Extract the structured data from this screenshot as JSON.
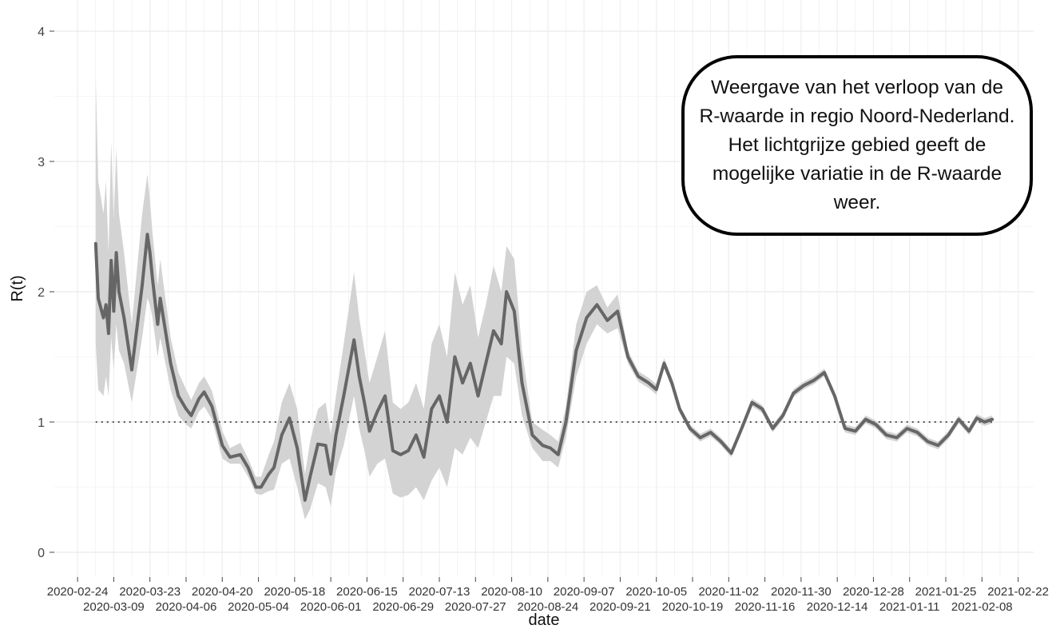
{
  "chart_data": {
    "type": "line",
    "title": "",
    "xlabel": "date",
    "ylabel": "R(t)",
    "ylim": [
      0,
      4
    ],
    "xlim": [
      "2020-02-15",
      "2021-02-28"
    ],
    "yticks": [
      0,
      1,
      2,
      3,
      4
    ],
    "ytick_labels": [
      "0",
      "1",
      "2",
      "3",
      "4"
    ],
    "xticks_row1": [
      "2020-02-24",
      "2020-03-23",
      "2020-04-20",
      "2020-05-18",
      "2020-06-15",
      "2020-07-13",
      "2020-08-10",
      "2020-09-07",
      "2020-10-05",
      "2020-11-02",
      "2020-11-30",
      "2020-12-28",
      "2021-01-25",
      "2021-02-22"
    ],
    "xticks_row1_labels": [
      "2020-02-24",
      "2020-03-23",
      "2020-04-20",
      "2020-05-18",
      "2020-06-15",
      "2020-07-13",
      "2020-08-10",
      "2020-09-07",
      "2020-10-05",
      "2020-11-02",
      "2020-11-30",
      "2020-12-28",
      "2021-01-25",
      "2021-02-22"
    ],
    "xticks_row2": [
      "2020-03-09",
      "2020-04-06",
      "2020-05-04",
      "2020-06-01",
      "2020-06-29",
      "2020-07-27",
      "2020-08-24",
      "2020-09-21",
      "2020-10-19",
      "2020-11-16",
      "2020-12-14",
      "2021-01-11",
      "2021-02-08"
    ],
    "xticks_row2_labels": [
      "2020-03-09",
      "2020-04-06",
      "2020-05-04",
      "2020-06-01",
      "2020-06-29",
      "2020-07-27",
      "2020-08-24",
      "2020-09-21",
      "2020-10-19",
      "2020-11-16",
      "2020-12-14",
      "2021-01-11",
      "2021-02-08"
    ],
    "grid": true,
    "reference_line": {
      "y": 1,
      "style": "dotted"
    },
    "colors": {
      "line": "#666666",
      "band": "#d3d3d3",
      "grid": "#ebebeb",
      "reference": "#555555"
    },
    "series": [
      {
        "x": [
          "2020-03-02",
          "2020-03-03",
          "2020-03-05",
          "2020-03-06",
          "2020-03-07",
          "2020-03-08",
          "2020-03-09",
          "2020-03-10",
          "2020-03-11",
          "2020-03-13",
          "2020-03-16",
          "2020-03-20",
          "2020-03-22",
          "2020-03-23",
          "2020-03-24",
          "2020-03-26",
          "2020-03-27",
          "2020-03-29",
          "2020-03-31",
          "2020-04-03",
          "2020-04-06",
          "2020-04-08",
          "2020-04-11",
          "2020-04-13",
          "2020-04-16",
          "2020-04-20",
          "2020-04-23",
          "2020-04-27",
          "2020-04-30",
          "2020-05-03",
          "2020-05-05",
          "2020-05-08",
          "2020-05-10",
          "2020-05-13",
          "2020-05-16",
          "2020-05-19",
          "2020-05-22",
          "2020-05-24",
          "2020-05-27",
          "2020-05-30",
          "2020-06-01",
          "2020-06-03",
          "2020-06-06",
          "2020-06-10",
          "2020-06-12",
          "2020-06-14",
          "2020-06-16",
          "2020-06-19",
          "2020-06-22",
          "2020-06-25",
          "2020-06-28",
          "2020-07-01",
          "2020-07-04",
          "2020-07-07",
          "2020-07-10",
          "2020-07-13",
          "2020-07-16",
          "2020-07-19",
          "2020-07-22",
          "2020-07-25",
          "2020-07-28",
          "2020-07-31",
          "2020-08-03",
          "2020-08-06",
          "2020-08-08",
          "2020-08-11",
          "2020-08-14",
          "2020-08-18",
          "2020-08-22",
          "2020-08-25",
          "2020-08-28",
          "2020-08-31",
          "2020-09-04",
          "2020-09-08",
          "2020-09-12",
          "2020-09-16",
          "2020-09-20",
          "2020-09-24",
          "2020-09-28",
          "2020-10-02",
          "2020-10-05",
          "2020-10-08",
          "2020-10-11",
          "2020-10-14",
          "2020-10-18",
          "2020-10-22",
          "2020-10-26",
          "2020-10-30",
          "2020-11-03",
          "2020-11-07",
          "2020-11-11",
          "2020-11-15",
          "2020-11-19",
          "2020-11-23",
          "2020-11-27",
          "2020-12-01",
          "2020-12-05",
          "2020-12-09",
          "2020-12-13",
          "2020-12-17",
          "2020-12-21",
          "2020-12-25",
          "2020-12-29",
          "2021-01-02",
          "2021-01-06",
          "2021-01-10",
          "2021-01-14",
          "2021-01-18",
          "2021-01-22",
          "2021-01-26",
          "2021-01-30",
          "2021-02-03",
          "2021-02-06",
          "2021-02-09",
          "2021-02-12"
        ],
        "values": [
          2.37,
          1.95,
          1.8,
          1.9,
          1.68,
          2.24,
          1.85,
          2.3,
          2.0,
          1.8,
          1.4,
          2.05,
          2.44,
          2.3,
          2.1,
          1.75,
          1.95,
          1.7,
          1.45,
          1.2,
          1.1,
          1.05,
          1.18,
          1.23,
          1.12,
          0.82,
          0.73,
          0.75,
          0.65,
          0.5,
          0.5,
          0.6,
          0.65,
          0.9,
          1.03,
          0.8,
          0.4,
          0.58,
          0.83,
          0.82,
          0.6,
          0.9,
          1.2,
          1.63,
          1.35,
          1.15,
          0.93,
          1.08,
          1.2,
          0.78,
          0.75,
          0.78,
          0.9,
          0.73,
          1.1,
          1.2,
          1.0,
          1.5,
          1.3,
          1.45,
          1.2,
          1.45,
          1.7,
          1.6,
          2.0,
          1.85,
          1.3,
          0.9,
          0.82,
          0.8,
          0.75,
          1.0,
          1.55,
          1.8,
          1.9,
          1.78,
          1.85,
          1.5,
          1.35,
          1.3,
          1.25,
          1.45,
          1.3,
          1.1,
          0.95,
          0.88,
          0.92,
          0.85,
          0.76,
          0.95,
          1.15,
          1.1,
          0.95,
          1.05,
          1.22,
          1.28,
          1.32,
          1.38,
          1.2,
          0.95,
          0.93,
          1.02,
          0.98,
          0.9,
          0.88,
          0.95,
          0.92,
          0.85,
          0.82,
          0.9,
          1.02,
          0.93,
          1.03,
          1.0,
          1.02
        ],
        "lower": [
          1.6,
          1.25,
          1.2,
          1.35,
          1.2,
          1.65,
          1.4,
          1.75,
          1.55,
          1.45,
          1.15,
          1.65,
          1.95,
          1.9,
          1.8,
          1.5,
          1.65,
          1.45,
          1.25,
          1.05,
          0.98,
          0.95,
          1.08,
          1.12,
          1.02,
          0.72,
          0.68,
          0.68,
          0.58,
          0.45,
          0.44,
          0.47,
          0.48,
          0.68,
          0.72,
          0.5,
          0.25,
          0.33,
          0.53,
          0.5,
          0.35,
          0.62,
          0.82,
          1.2,
          0.95,
          0.78,
          0.58,
          0.68,
          0.72,
          0.45,
          0.42,
          0.44,
          0.5,
          0.4,
          0.55,
          0.65,
          0.5,
          0.8,
          0.75,
          0.88,
          0.8,
          1.0,
          1.2,
          1.2,
          1.5,
          1.45,
          1.05,
          0.8,
          0.7,
          0.7,
          0.65,
          0.88,
          1.35,
          1.6,
          1.75,
          1.68,
          1.72,
          1.45,
          1.31,
          1.26,
          1.21,
          1.41,
          1.26,
          1.07,
          0.92,
          0.85,
          0.89,
          0.82,
          0.73,
          0.92,
          1.12,
          1.07,
          0.92,
          1.02,
          1.19,
          1.25,
          1.29,
          1.35,
          1.17,
          0.92,
          0.9,
          0.99,
          0.95,
          0.87,
          0.85,
          0.92,
          0.89,
          0.82,
          0.79,
          0.87,
          0.99,
          0.9,
          1.0,
          0.97,
          0.99
        ],
        "upper": [
          3.65,
          2.85,
          2.6,
          2.85,
          2.3,
          3.15,
          2.55,
          3.1,
          2.6,
          2.3,
          1.75,
          2.6,
          2.9,
          2.7,
          2.45,
          2.05,
          2.25,
          1.95,
          1.65,
          1.38,
          1.25,
          1.17,
          1.3,
          1.35,
          1.24,
          0.93,
          0.8,
          0.84,
          0.72,
          0.58,
          0.58,
          0.75,
          0.85,
          1.15,
          1.3,
          1.1,
          0.6,
          0.85,
          1.1,
          1.15,
          0.9,
          1.2,
          1.6,
          2.15,
          1.8,
          1.55,
          1.3,
          1.5,
          1.7,
          1.15,
          1.1,
          1.15,
          1.3,
          1.1,
          1.6,
          1.75,
          1.5,
          2.15,
          1.9,
          2.05,
          1.65,
          1.9,
          2.2,
          2.0,
          2.35,
          2.25,
          1.55,
          1.0,
          0.94,
          0.9,
          0.85,
          1.12,
          1.75,
          2.0,
          2.05,
          1.88,
          1.98,
          1.55,
          1.39,
          1.34,
          1.29,
          1.49,
          1.34,
          1.13,
          0.98,
          0.91,
          0.95,
          0.88,
          0.79,
          0.98,
          1.18,
          1.13,
          0.98,
          1.08,
          1.25,
          1.31,
          1.35,
          1.41,
          1.23,
          0.98,
          0.96,
          1.05,
          1.01,
          0.93,
          0.91,
          0.98,
          0.95,
          0.88,
          0.85,
          0.93,
          1.05,
          0.96,
          1.06,
          1.03,
          1.05
        ]
      }
    ]
  },
  "annotation": {
    "text": "Weergave van het verloop van de R-waarde in regio Noord-Nederland. Het lichtgrijze gebied geeft de mogelijke variatie in de R-waarde weer."
  }
}
